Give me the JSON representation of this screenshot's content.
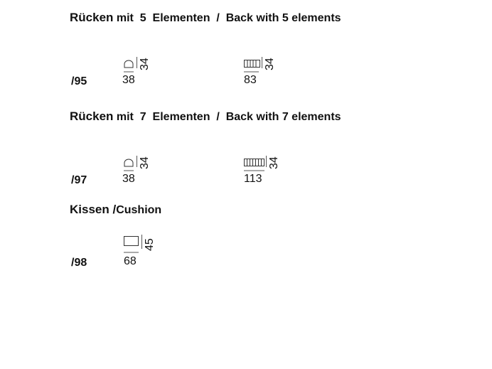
{
  "sections": [
    {
      "title_a": "Rücken",
      "title_b": "mit  5  Elementen  /  Back with 5 elements",
      "code": "/95",
      "items": [
        {
          "icon": "back-cushion-icon",
          "width": "38",
          "height": "34"
        },
        {
          "icon": "back-5-elements-icon",
          "width": "83",
          "height": "34"
        }
      ]
    },
    {
      "title_a": "Rücken",
      "title_b": "mit  7  Elementen  /  Back with 7 elements",
      "code": "/97",
      "items": [
        {
          "icon": "back-cushion-icon",
          "width": "38",
          "height": "34"
        },
        {
          "icon": "back-7-elements-icon",
          "width": "113",
          "height": "34"
        }
      ]
    },
    {
      "title_a": "Kissen /",
      "title_b": "Cushion",
      "code": "/98",
      "items": [
        {
          "icon": "cushion-icon",
          "width": "68",
          "height": "45"
        }
      ]
    }
  ]
}
